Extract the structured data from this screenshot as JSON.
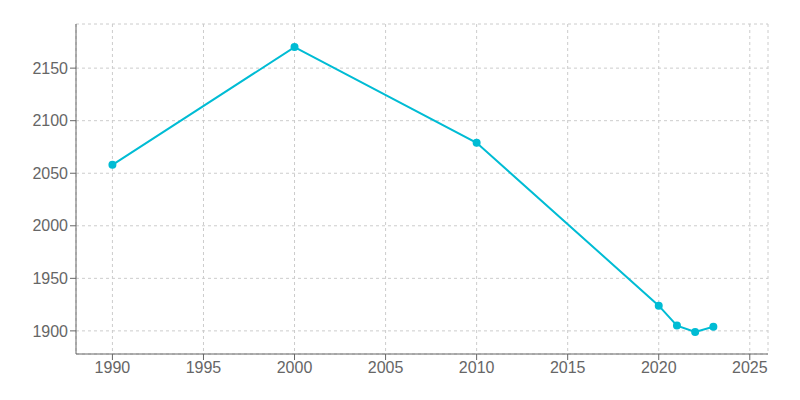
{
  "chart_data": {
    "type": "line",
    "x": [
      1990,
      2000,
      2010,
      2020,
      2021,
      2022,
      2023
    ],
    "values": [
      2058,
      2170,
      2079,
      1924,
      1905,
      1899,
      1904
    ],
    "color": "#00bcd4",
    "marker": "circle",
    "xlim": [
      1988,
      2026
    ],
    "ylim": [
      1878,
      2192
    ],
    "xticks": [
      1990,
      1995,
      2000,
      2005,
      2010,
      2015,
      2020,
      2025
    ],
    "yticks": [
      1900,
      1950,
      2000,
      2050,
      2100,
      2150
    ],
    "grid": true
  }
}
